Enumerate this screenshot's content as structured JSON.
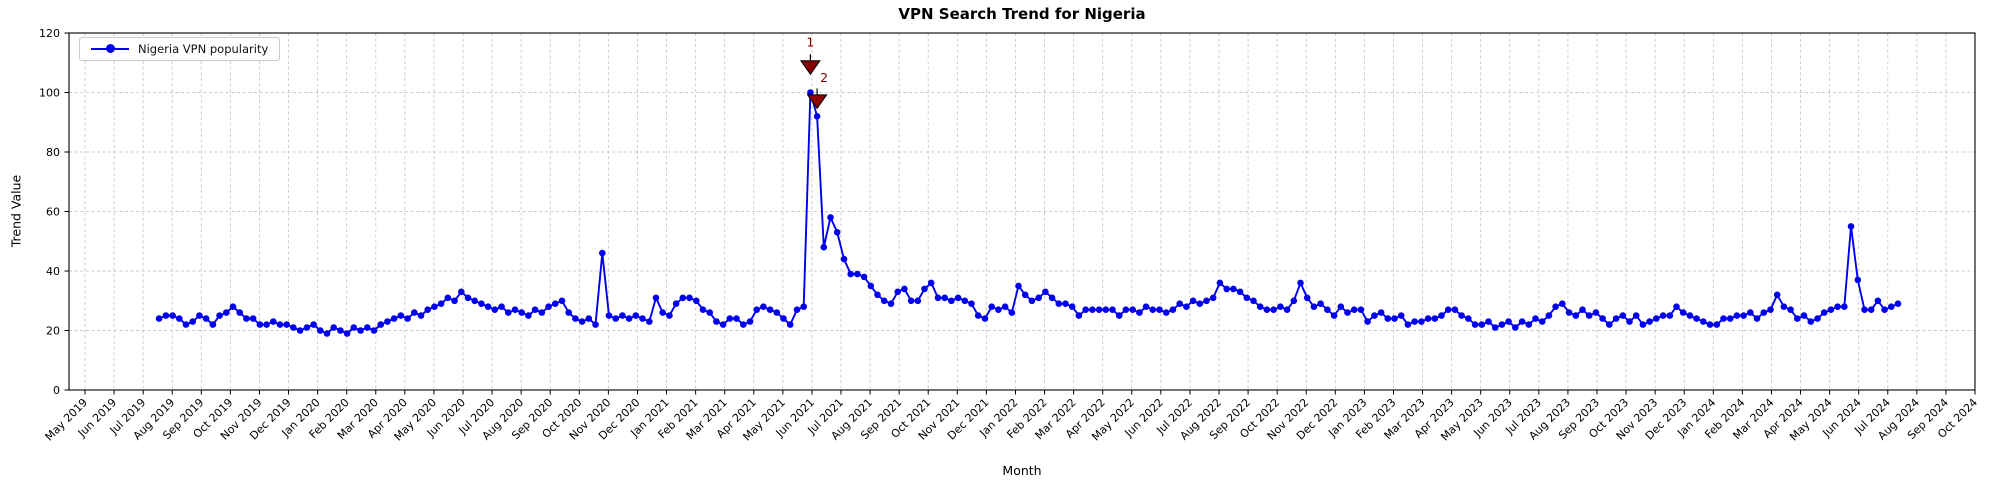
{
  "title": "VPN Search Trend for Nigeria",
  "legend": {
    "label": "Nigeria VPN popularity"
  },
  "colors": {
    "line": "#0000ee",
    "marker": "#0000ee",
    "annotation": "#8b0000",
    "grid": "#c9c9c9",
    "axis": "#000000",
    "background": "#ffffff"
  },
  "chart_data": {
    "type": "line",
    "title": "VPN Search Trend for Nigeria",
    "xlabel": "Month",
    "ylabel": "Trend Value",
    "series_name": "Nigeria VPN popularity",
    "ylim": [
      0,
      120
    ],
    "yticks": [
      0,
      20,
      40,
      60,
      80,
      100,
      120
    ],
    "grid": true,
    "legend_position": "upper left",
    "x_tick_labels": [
      "May 2019",
      "Jun 2019",
      "Jul 2019",
      "Aug 2019",
      "Sep 2019",
      "Oct 2019",
      "Nov 2019",
      "Dec 2019",
      "Jan 2020",
      "Feb 2020",
      "Mar 2020",
      "Apr 2020",
      "May 2020",
      "Jun 2020",
      "Jul 2020",
      "Aug 2020",
      "Sep 2020",
      "Oct 2020",
      "Nov 2020",
      "Dec 2020",
      "Jan 2021",
      "Feb 2021",
      "Mar 2021",
      "Apr 2021",
      "May 2021",
      "Jun 2021",
      "Jul 2021",
      "Aug 2021",
      "Sep 2021",
      "Oct 2021",
      "Nov 2021",
      "Dec 2021",
      "Jan 2022",
      "Feb 2022",
      "Mar 2022",
      "Apr 2022",
      "May 2022",
      "Jun 2022",
      "Jul 2022",
      "Aug 2022",
      "Sep 2022",
      "Oct 2022",
      "Nov 2022",
      "Dec 2022",
      "Jan 2023",
      "Feb 2023",
      "Mar 2023",
      "Apr 2023",
      "May 2023",
      "Jun 2023",
      "Jul 2023",
      "Aug 2023",
      "Sep 2023",
      "Oct 2023",
      "Nov 2023",
      "Dec 2023",
      "Jan 2024",
      "Feb 2024",
      "Mar 2024",
      "Apr 2024",
      "May 2024",
      "Jun 2024",
      "Jul 2024",
      "Aug 2024",
      "Sep 2024",
      "Oct 2024"
    ],
    "x_unit": "weekly points, late Jul 2019 through mid Jul 2024",
    "start_month_offset": 2.55,
    "week_step_months": 0.2309,
    "values": [
      24,
      25,
      25,
      24,
      22,
      23,
      25,
      24,
      22,
      25,
      26,
      28,
      26,
      24,
      24,
      22,
      22,
      23,
      22,
      22,
      21,
      20,
      21,
      22,
      20,
      19,
      21,
      20,
      19,
      21,
      20,
      21,
      20,
      22,
      23,
      24,
      25,
      24,
      26,
      25,
      27,
      28,
      29,
      31,
      30,
      33,
      31,
      30,
      29,
      28,
      27,
      28,
      26,
      27,
      26,
      25,
      27,
      26,
      28,
      29,
      30,
      26,
      24,
      23,
      24,
      22,
      46,
      25,
      24,
      25,
      24,
      25,
      24,
      23,
      31,
      26,
      25,
      29,
      31,
      31,
      30,
      27,
      26,
      23,
      22,
      24,
      24,
      22,
      23,
      27,
      28,
      27,
      26,
      24,
      22,
      27,
      28,
      100,
      92,
      48,
      58,
      53,
      44,
      39,
      39,
      38,
      35,
      32,
      30,
      29,
      33,
      34,
      30,
      30,
      34,
      36,
      31,
      31,
      30,
      31,
      30,
      29,
      25,
      24,
      28,
      27,
      28,
      26,
      35,
      32,
      30,
      31,
      33,
      31,
      29,
      29,
      28,
      25,
      27,
      27,
      27,
      27,
      27,
      25,
      27,
      27,
      26,
      28,
      27,
      27,
      26,
      27,
      29,
      28,
      30,
      29,
      30,
      31,
      36,
      34,
      34,
      33,
      31,
      30,
      28,
      27,
      27,
      28,
      27,
      30,
      36,
      31,
      28,
      29,
      27,
      25,
      28,
      26,
      27,
      27,
      23,
      25,
      26,
      24,
      24,
      25,
      22,
      23,
      23,
      24,
      24,
      25,
      27,
      27,
      25,
      24,
      22,
      22,
      23,
      21,
      22,
      23,
      21,
      23,
      22,
      24,
      23,
      25,
      28,
      29,
      26,
      25,
      27,
      25,
      26,
      24,
      22,
      24,
      25,
      23,
      25,
      22,
      23,
      24,
      25,
      25,
      28,
      26,
      25,
      24,
      23,
      22,
      22,
      24,
      24,
      25,
      25,
      26,
      24,
      26,
      27,
      32,
      28,
      27,
      24,
      25,
      23,
      24,
      26,
      27,
      28,
      28,
      55,
      37,
      27,
      27,
      30,
      27,
      28,
      29
    ],
    "annotations": [
      {
        "label": "1",
        "week_index": 97,
        "value": 100,
        "triangle_dv": 8.5,
        "text_dv": 15.5,
        "text_dx": 0
      },
      {
        "label": "2",
        "week_index": 98,
        "value": 92,
        "triangle_dv": 5,
        "text_dv": 11.5,
        "text_dx": 7
      }
    ]
  }
}
